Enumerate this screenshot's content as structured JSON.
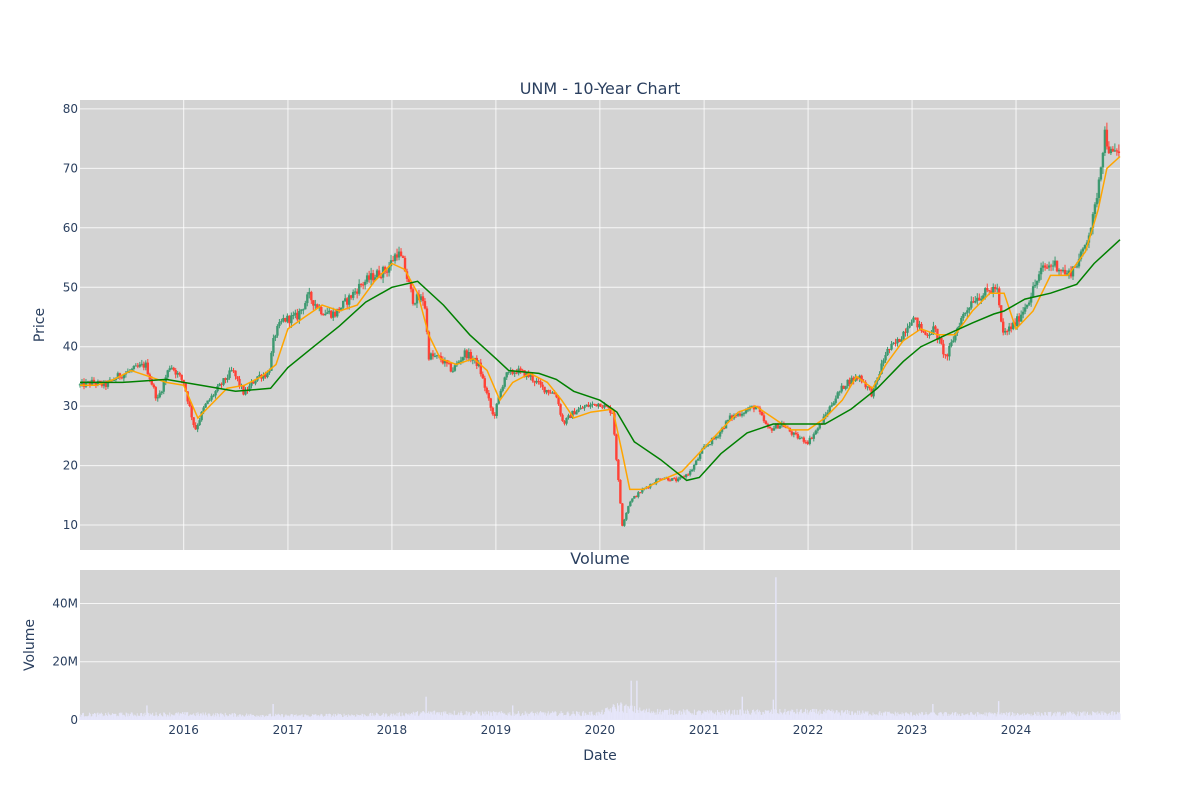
{
  "chart_data": [
    {
      "type": "line",
      "title": "UNM - 10-Year Chart",
      "xlabel": "",
      "ylabel": "Price",
      "ylim": [
        5.8,
        81.5
      ],
      "xlim": [
        "2015-01-02",
        "2024-12-31"
      ],
      "y_ticks": [
        10,
        20,
        30,
        40,
        50,
        60,
        70,
        80
      ],
      "grid": true,
      "plot_bgcolor": "#d3d3d3",
      "grid_color": "#ffffff",
      "candle_colors": {
        "increasing": "#3d9970",
        "decreasing": "#ff4136"
      },
      "price_series": {
        "x": [
          "2015-01-02",
          "2015-02-15",
          "2015-04-01",
          "2015-05-15",
          "2015-07-01",
          "2015-08-20",
          "2015-10-01",
          "2015-11-15",
          "2016-01-01",
          "2016-02-10",
          "2016-03-15",
          "2016-05-01",
          "2016-06-20",
          "2016-08-01",
          "2016-09-15",
          "2016-10-25",
          "2016-11-15",
          "2016-12-15",
          "2017-02-01",
          "2017-03-15",
          "2017-05-01",
          "2017-06-15",
          "2017-08-01",
          "2017-09-15",
          "2017-11-01",
          "2017-12-15",
          "2018-01-20",
          "2018-02-10",
          "2018-03-15",
          "2018-04-25",
          "2018-05-10",
          "2018-06-20",
          "2018-08-01",
          "2018-09-15",
          "2018-11-01",
          "2018-12-24",
          "2019-02-01",
          "2019-03-15",
          "2019-05-01",
          "2019-06-15",
          "2019-08-01",
          "2019-08-25",
          "2019-10-01",
          "2019-11-15",
          "2020-01-01",
          "2020-02-15",
          "2020-03-01",
          "2020-03-20",
          "2020-04-15",
          "2020-06-01",
          "2020-08-01",
          "2020-10-01",
          "2020-11-15",
          "2021-01-01",
          "2021-02-15",
          "2021-04-01",
          "2021-05-15",
          "2021-07-01",
          "2021-08-15",
          "2021-10-01",
          "2021-11-15",
          "2022-01-01",
          "2022-02-15",
          "2022-04-01",
          "2022-05-15",
          "2022-07-01",
          "2022-08-15",
          "2022-10-01",
          "2022-11-15",
          "2023-01-01",
          "2023-02-15",
          "2023-03-20",
          "2023-05-01",
          "2023-06-15",
          "2023-08-01",
          "2023-09-15",
          "2023-10-25",
          "2023-11-15",
          "2024-01-01",
          "2024-02-15",
          "2024-04-01",
          "2024-05-15",
          "2024-07-01",
          "2024-08-15",
          "2024-10-01",
          "2024-11-07",
          "2024-12-01",
          "2024-12-31"
        ],
        "y": [
          33.5,
          34,
          33.5,
          35,
          36,
          37,
          31,
          37,
          34,
          26,
          30,
          33,
          36,
          32,
          35,
          35.5,
          42,
          44.5,
          45,
          48.5,
          46,
          45.5,
          48,
          50.5,
          52,
          53,
          56,
          54,
          48,
          48,
          38.5,
          38,
          36,
          39,
          37,
          28,
          35,
          36,
          35,
          33,
          32,
          27,
          29,
          30,
          30.5,
          29,
          20,
          10,
          14,
          16,
          18,
          17.5,
          19,
          23,
          25,
          28,
          29,
          30,
          26,
          27,
          25,
          24,
          27,
          31,
          34,
          35,
          32,
          39,
          41,
          45,
          42,
          43,
          38,
          44,
          48,
          49,
          50,
          42,
          44,
          48,
          53,
          54,
          52,
          55,
          62,
          76,
          72,
          73
        ]
      },
      "series": [
        {
          "name": "",
          "color": "#ffa500",
          "x": [
            "2015-01-02",
            "2015-03-01",
            "2015-05-01",
            "2015-07-01",
            "2015-09-01",
            "2015-11-01",
            "2016-01-01",
            "2016-02-20",
            "2016-04-01",
            "2016-06-01",
            "2016-08-01",
            "2016-10-01",
            "2016-11-20",
            "2017-01-01",
            "2017-03-01",
            "2017-05-01",
            "2017-07-01",
            "2017-09-01",
            "2017-11-01",
            "2018-01-01",
            "2018-02-15",
            "2018-04-01",
            "2018-05-10",
            "2018-06-20",
            "2018-08-15",
            "2018-10-15",
            "2018-12-01",
            "2019-01-15",
            "2019-03-01",
            "2019-05-01",
            "2019-07-01",
            "2019-08-20",
            "2019-10-01",
            "2019-12-01",
            "2020-02-15",
            "2020-03-20",
            "2020-04-15",
            "2020-06-01",
            "2020-08-01",
            "2020-10-15",
            "2021-01-01",
            "2021-03-01",
            "2021-05-01",
            "2021-07-01",
            "2021-09-01",
            "2021-11-01",
            "2022-01-01",
            "2022-03-01",
            "2022-05-01",
            "2022-06-20",
            "2022-08-15",
            "2022-10-01",
            "2022-12-01",
            "2023-02-01",
            "2023-04-01",
            "2023-06-01",
            "2023-08-01",
            "2023-10-01",
            "2023-11-20",
            "2024-01-01",
            "2024-03-01",
            "2024-05-01",
            "2024-07-01",
            "2024-09-01",
            "2024-10-15",
            "2024-11-15",
            "2024-12-31"
          ],
          "y": [
            33.5,
            33.5,
            34.5,
            36,
            35,
            34,
            33.5,
            28,
            30,
            33,
            33.5,
            35,
            37,
            43,
            45,
            47,
            46,
            47,
            51,
            54,
            53,
            49,
            42,
            38,
            37,
            38,
            36,
            31,
            34,
            35.5,
            34,
            31,
            28,
            29,
            29.5,
            22,
            16,
            16,
            17.5,
            19,
            23,
            26,
            29,
            30,
            28,
            26,
            26,
            28,
            31,
            35,
            33,
            37,
            41,
            43,
            42,
            42,
            46,
            49,
            49,
            43,
            46,
            52,
            52,
            56,
            63,
            70,
            72
          ]
        },
        {
          "name": "",
          "color": "#008000",
          "x": [
            "2015-01-02",
            "2015-06-01",
            "2015-11-01",
            "2016-03-01",
            "2016-07-01",
            "2016-11-01",
            "2017-01-01",
            "2017-04-01",
            "2017-07-01",
            "2017-10-01",
            "2018-01-01",
            "2018-04-01",
            "2018-07-01",
            "2018-10-01",
            "2019-01-01",
            "2019-02-15",
            "2019-06-01",
            "2019-08-01",
            "2019-10-01",
            "2020-01-01",
            "2020-03-01",
            "2020-05-01",
            "2020-08-01",
            "2020-11-01",
            "2020-12-15",
            "2021-03-01",
            "2021-06-01",
            "2021-09-01",
            "2021-12-01",
            "2022-03-01",
            "2022-06-01",
            "2022-09-01",
            "2022-12-01",
            "2023-02-01",
            "2023-05-01",
            "2023-08-01",
            "2023-10-15",
            "2023-11-20",
            "2024-02-01",
            "2024-05-01",
            "2024-08-01",
            "2024-10-01",
            "2024-12-31"
          ],
          "y": [
            34,
            34,
            34.5,
            33.5,
            32.5,
            33,
            36.5,
            40,
            43.5,
            47.5,
            50,
            51,
            47,
            42,
            38,
            36,
            35.5,
            34.5,
            32.5,
            31,
            29,
            24,
            21,
            17.5,
            18,
            22,
            25.5,
            27,
            27,
            27,
            29.5,
            33,
            37.5,
            40,
            42,
            44,
            45.5,
            46,
            48,
            49,
            50.5,
            54,
            58
          ]
        }
      ]
    },
    {
      "type": "bar",
      "title": "Volume",
      "xlabel": "Date",
      "ylabel": "Volume",
      "ylim": [
        0,
        51500000
      ],
      "y_tick_values": [
        0,
        20000000,
        40000000
      ],
      "y_tick_labels": [
        "0",
        "20M",
        "40M"
      ],
      "x_tick_labels": [
        "2016",
        "2017",
        "2018",
        "2019",
        "2020",
        "2021",
        "2022",
        "2023",
        "2024"
      ],
      "x_tick_dates": [
        "2016-01-01",
        "2017-01-01",
        "2018-01-01",
        "2019-01-01",
        "2020-01-01",
        "2021-01-01",
        "2022-01-01",
        "2023-01-01",
        "2024-01-01"
      ],
      "bar_color": "#e6e6fa",
      "base_levels": {
        "x": [
          "2015-01-02",
          "2016-01-01",
          "2017-01-01",
          "2018-01-01",
          "2018-06-01",
          "2019-01-01",
          "2020-01-01",
          "2020-03-01",
          "2020-06-01",
          "2021-01-01",
          "2022-01-01",
          "2023-01-01",
          "2024-01-01",
          "2024-12-31"
        ],
        "y": [
          1800000,
          2000000,
          1500000,
          1800000,
          2500000,
          2200000,
          2200000,
          4500000,
          3000000,
          2500000,
          2800000,
          2000000,
          2000000,
          2200000
        ]
      },
      "spikes": {
        "x": [
          "2015-08-25",
          "2016-11-10",
          "2018-05-01",
          "2019-03-01",
          "2020-03-15",
          "2020-04-20",
          "2020-05-10",
          "2021-05-15",
          "2021-09-01",
          "2021-09-10",
          "2023-03-15",
          "2023-11-01"
        ],
        "y": [
          5000000,
          5500000,
          8000000,
          5000000,
          6000000,
          13500000,
          13500000,
          8000000,
          7000000,
          49000000,
          5500000,
          6500000
        ]
      }
    }
  ]
}
